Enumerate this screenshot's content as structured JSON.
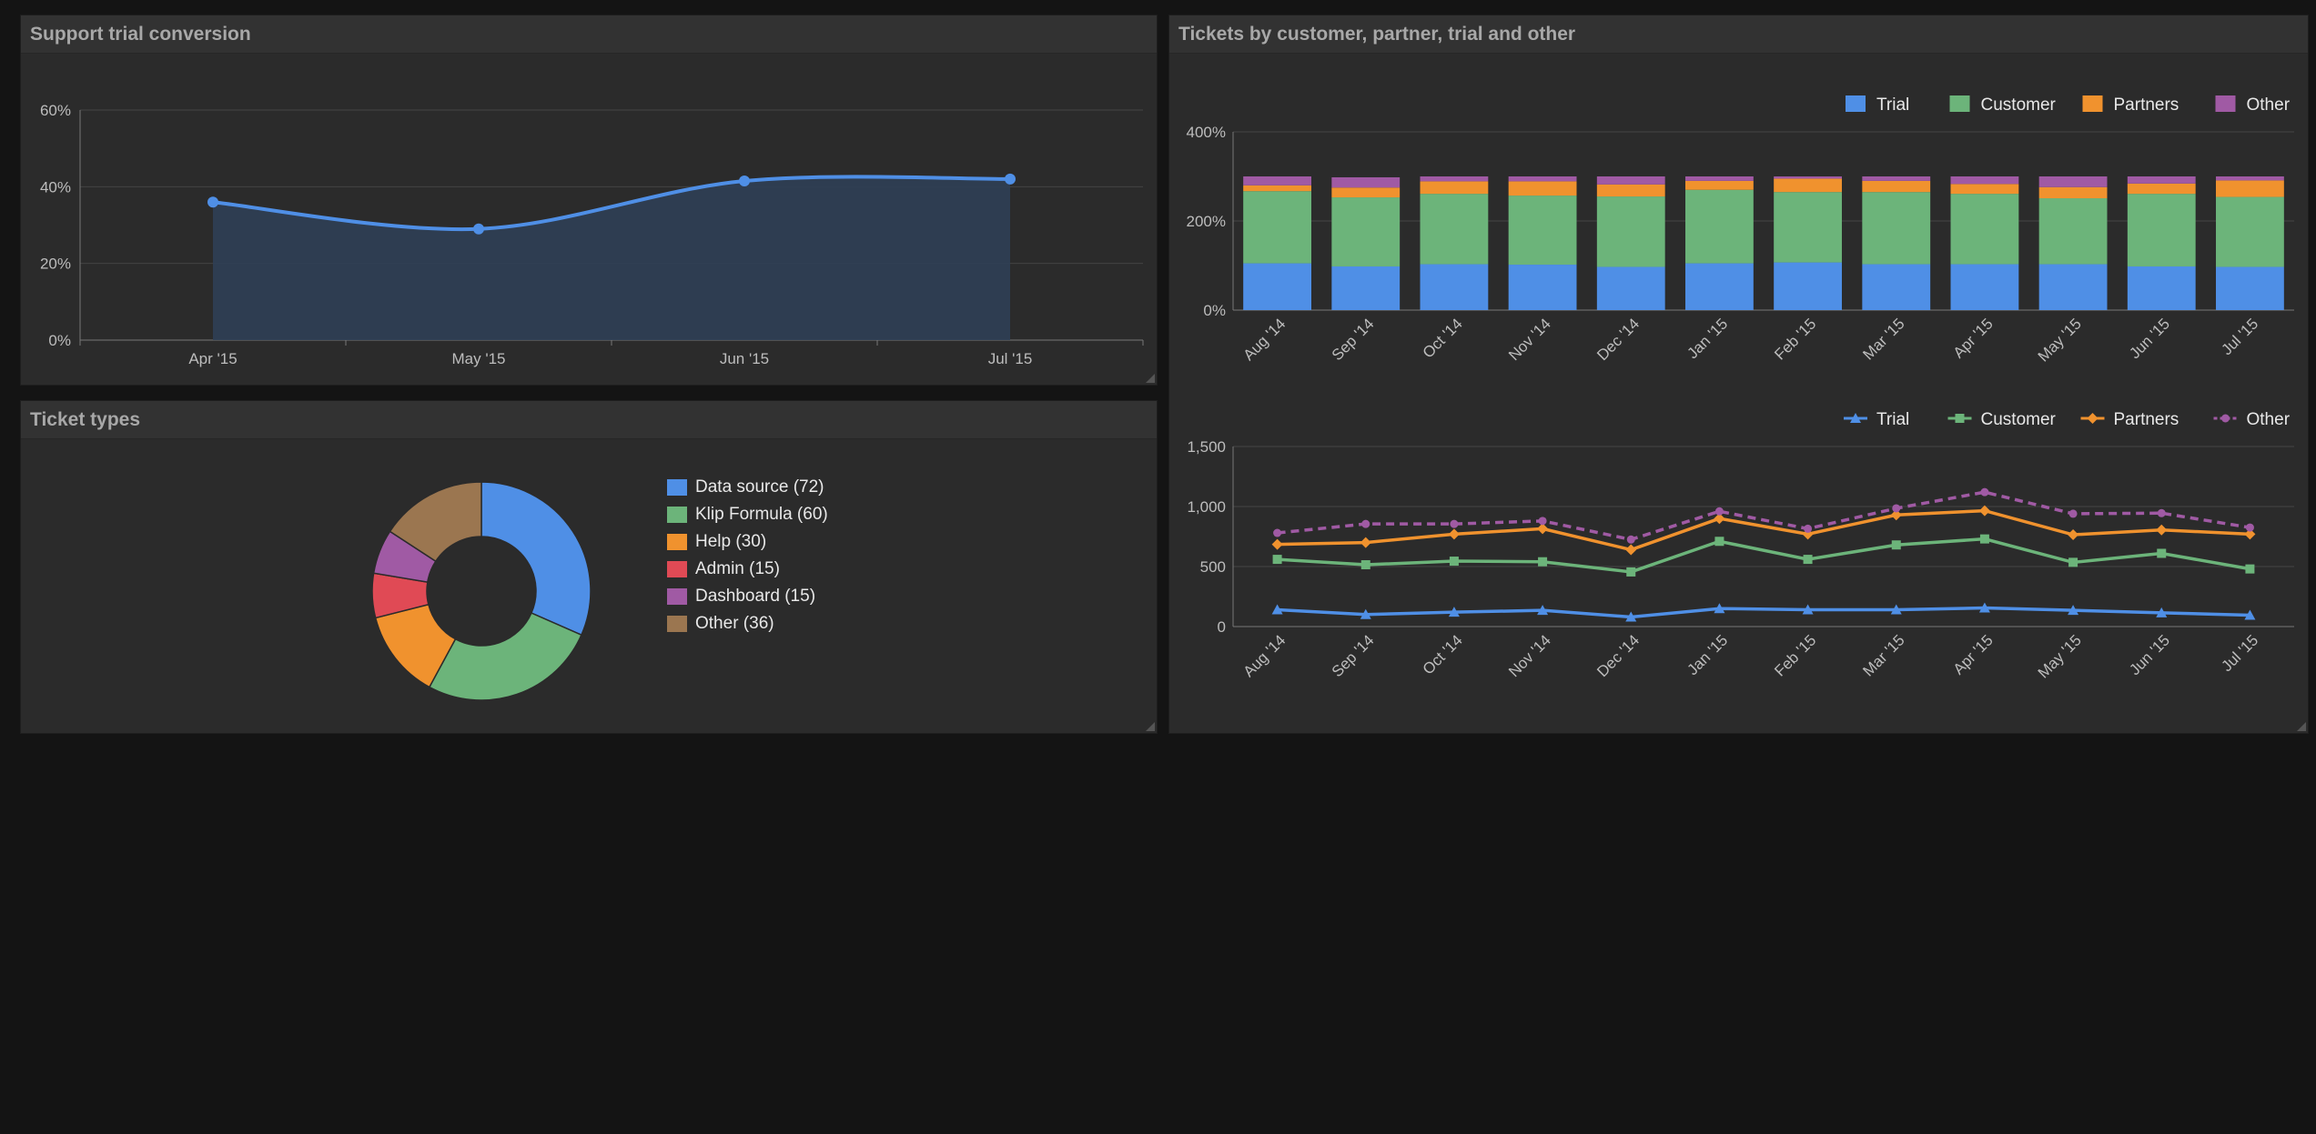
{
  "colors": {
    "blue": "#4f8fe6",
    "green": "#6cb47a",
    "orange": "#f0922e",
    "red": "#e04a55",
    "purple": "#a05aa4",
    "brown": "#9b7650"
  },
  "panels": {
    "conversion": {
      "title": "Support trial conversion"
    },
    "ticket_types": {
      "title": "Ticket types"
    },
    "tickets": {
      "title": "Tickets by customer, partner, trial and other"
    }
  },
  "chart_data": [
    {
      "id": "conversion",
      "type": "area",
      "title": "Support trial conversion",
      "categories": [
        "Apr '15",
        "May '15",
        "Jun '15",
        "Jul '15"
      ],
      "series": [
        {
          "values": [
            36,
            29,
            41.5,
            42
          ]
        }
      ],
      "ylim": [
        0,
        60
      ],
      "yticks": [
        "0%",
        "20%",
        "40%",
        "60%"
      ],
      "grid": true,
      "smooth": true
    },
    {
      "id": "ticket_types",
      "type": "pie",
      "title": "Ticket types",
      "donut": true,
      "slices": [
        {
          "label": "Data source (72)",
          "value": 72,
          "color": "#4f8fe6"
        },
        {
          "label": "Klip Formula (60)",
          "value": 60,
          "color": "#6cb47a"
        },
        {
          "label": "Help (30)",
          "value": 30,
          "color": "#f0922e"
        },
        {
          "label": "Admin (15)",
          "value": 15,
          "color": "#e04a55"
        },
        {
          "label": "Dashboard (15)",
          "value": 15,
          "color": "#a05aa4"
        },
        {
          "label": "Other (36)",
          "value": 36,
          "color": "#9b7650"
        }
      ],
      "legend_position": "right"
    },
    {
      "id": "tickets_stacked",
      "type": "bar",
      "stacked": "percent",
      "categories": [
        "Aug '14",
        "Sep '14",
        "Oct '14",
        "Nov '14",
        "Dec '14",
        "Jan '15",
        "Feb '15",
        "Mar '15",
        "Apr '15",
        "May '15",
        "Jun '15",
        "Jul '15"
      ],
      "series": [
        {
          "name": "Trial",
          "values": [
            105,
            98,
            103,
            102,
            97,
            105,
            107,
            103,
            103,
            103,
            98,
            97
          ],
          "color": "#4f8fe6"
        },
        {
          "name": "Customer",
          "values": [
            162,
            155,
            158,
            155,
            158,
            165,
            158,
            162,
            158,
            148,
            163,
            157
          ],
          "color": "#6cb47a"
        },
        {
          "name": "Partners",
          "values": [
            13,
            22,
            28,
            32,
            27,
            20,
            30,
            25,
            22,
            25,
            23,
            37
          ],
          "color": "#f0922e"
        },
        {
          "name": "Other",
          "values": [
            20,
            23,
            11,
            11,
            18,
            10,
            5,
            10,
            17,
            24,
            16,
            9
          ],
          "color": "#a05aa4"
        }
      ],
      "ylim": [
        0,
        400
      ],
      "yticks": [
        "0%",
        "200%",
        "400%"
      ],
      "legend_position": "top-right",
      "grid": true
    },
    {
      "id": "tickets_line",
      "type": "line",
      "categories": [
        "Aug '14",
        "Sep '14",
        "Oct '14",
        "Nov '14",
        "Dec '14",
        "Jan '15",
        "Feb '15",
        "Mar '15",
        "Apr '15",
        "May '15",
        "Jun '15",
        "Jul '15"
      ],
      "series": [
        {
          "name": "Trial",
          "values": [
            140,
            100,
            120,
            135,
            80,
            150,
            140,
            140,
            155,
            135,
            115,
            95
          ],
          "color": "#4f8fe6",
          "marker": "triangle"
        },
        {
          "name": "Customer",
          "values": [
            560,
            515,
            545,
            540,
            455,
            710,
            560,
            680,
            730,
            535,
            610,
            480
          ],
          "color": "#6cb47a",
          "marker": "square"
        },
        {
          "name": "Partners",
          "values": [
            685,
            700,
            770,
            815,
            640,
            900,
            770,
            930,
            965,
            765,
            805,
            770
          ],
          "color": "#f0922e",
          "marker": "diamond"
        },
        {
          "name": "Other",
          "values": [
            780,
            855,
            855,
            880,
            725,
            960,
            815,
            985,
            1120,
            940,
            945,
            825
          ],
          "color": "#a05aa4",
          "marker": "circle",
          "dashed": true
        }
      ],
      "ylim": [
        0,
        1500
      ],
      "yticks": [
        "0",
        "500",
        "1,000",
        "1,500"
      ],
      "legend_position": "top-right",
      "grid": true
    }
  ]
}
